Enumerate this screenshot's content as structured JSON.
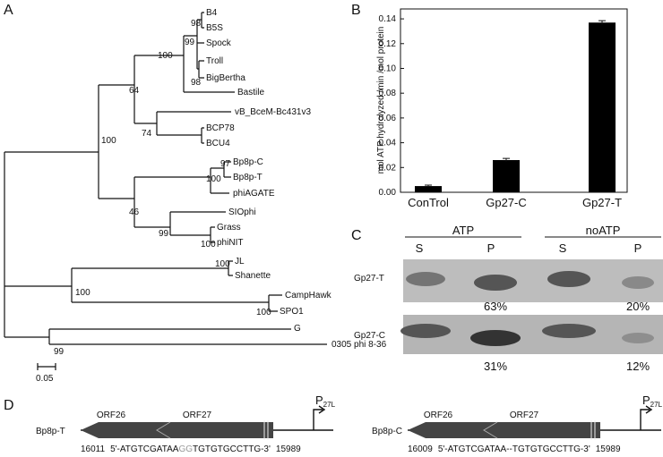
{
  "panel_a": {
    "label": "A",
    "leaves": [
      "B4",
      "B5S",
      "Spock",
      "Troll",
      "BigBertha",
      "Bastile",
      "vB_BceM-Bc431v3",
      "BCP78",
      "BCU4",
      "Bp8p-C",
      "Bp8p-T",
      "phiAGATE",
      "SIOphi",
      "Grass",
      "phiNIT",
      "JL",
      "Shanette",
      "CampHawk",
      "SPO1",
      "G",
      "0305 phi 8-36"
    ],
    "bootstraps": [
      "98",
      "99",
      "100",
      "98",
      "64",
      "74",
      "100",
      "97",
      "100",
      "46",
      "99",
      "100",
      "100",
      "100",
      "100",
      "99"
    ],
    "scale": "0.05"
  },
  "chart_data": {
    "type": "bar",
    "label": "B",
    "y_label": "mol ATP hydrolyzed /min /mol protein",
    "categories": [
      "ConTrol",
      "Gp27-C",
      "Gp27-T"
    ],
    "values": [
      0.005,
      0.026,
      0.137
    ],
    "errors": [
      0.0008,
      0.0013,
      0.0015
    ],
    "color": "#000000",
    "ylim": [
      0,
      0.148
    ],
    "yticks": [
      {
        "value": 0,
        "label": "0.00"
      },
      0.02,
      0.04,
      0.06,
      0.08,
      {
        "value": 0.1,
        "label": "0.10"
      },
      0.12,
      0.14
    ]
  },
  "panel_c": {
    "label": "C",
    "groups": [
      "ATP",
      "noATP"
    ],
    "lanes": [
      "S",
      "P",
      "S",
      "P"
    ],
    "rows": [
      {
        "name": "Gp27-T",
        "percents": [
          "63%",
          "20%"
        ]
      },
      {
        "name": "Gp27-C",
        "percents": [
          "31%",
          "12%"
        ]
      }
    ]
  },
  "panel_d": {
    "label": "D",
    "genes": [
      "ORF26",
      "ORF27"
    ],
    "promoter": {
      "main": "P",
      "sub": "27L"
    },
    "constructs": [
      {
        "name": "Bp8p-T",
        "start": "16011",
        "parts": [
          "5'-ATGTCGATAA",
          "GG",
          "TGTGTGCCTTG-3'"
        ],
        "end": "15989"
      },
      {
        "name": "Bp8p-C",
        "start": "16009",
        "parts": [
          "5'-ATGTCGATAA--TGTGTGCCTTG-3'"
        ],
        "end": "15989"
      }
    ]
  }
}
